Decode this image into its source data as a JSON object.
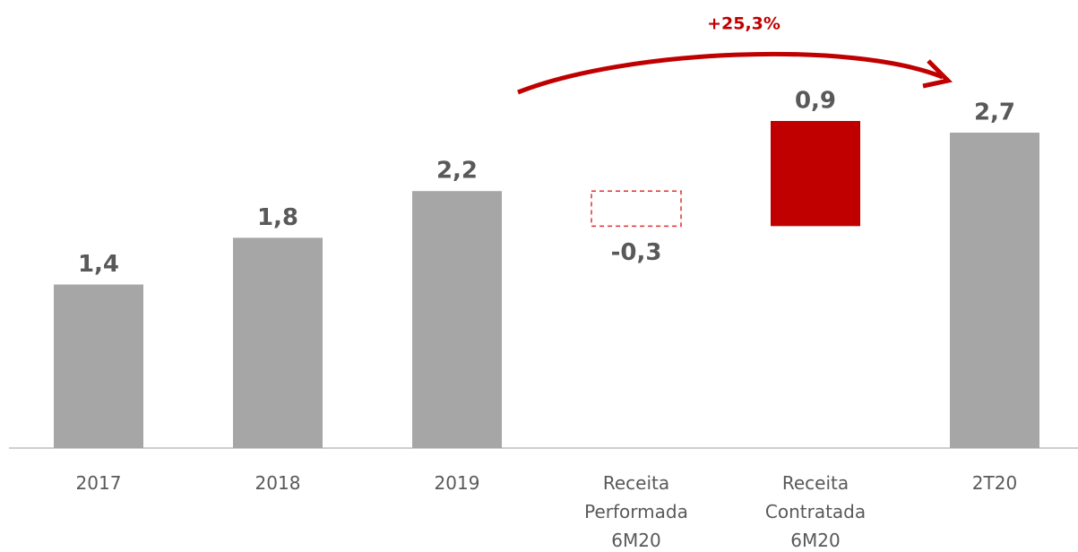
{
  "chart_data": {
    "type": "waterfall",
    "categories": [
      "2017",
      "2018",
      "2019",
      "Receita Performada 6M20",
      "Receita Contratada 6M20",
      "2T20"
    ],
    "values": [
      1.4,
      1.8,
      2.2,
      -0.3,
      0.9,
      2.7
    ],
    "value_labels": [
      "1,4",
      "1,8",
      "2,2",
      "-0,3",
      "0,9",
      "2,7"
    ],
    "measure": [
      "absolute",
      "absolute",
      "absolute",
      "relative",
      "relative",
      "absolute"
    ],
    "colors": {
      "absolute": "#a6a6a6",
      "increase": "#c00000",
      "decrease": "#e03030"
    },
    "annotation": "+25,3%"
  }
}
